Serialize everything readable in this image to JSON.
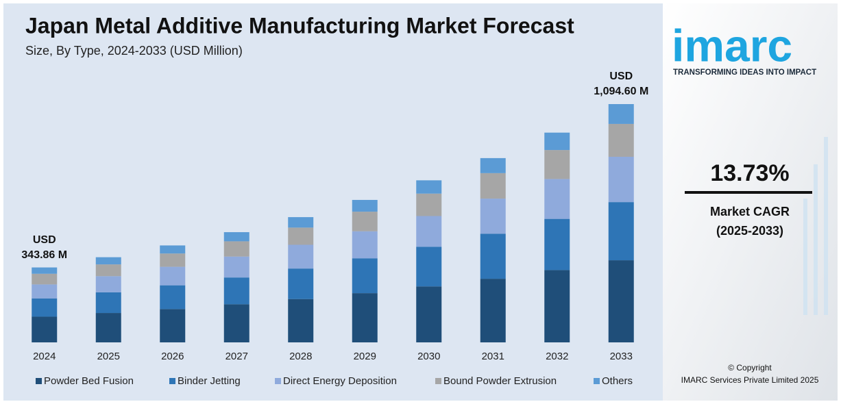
{
  "chart_data": {
    "type": "stacked_bar",
    "title": "Japan Metal Additive Manufacturing Market Forecast",
    "subtitle": "Size, By Type, 2024-2033 (USD Million)",
    "categories": [
      "2024",
      "2025",
      "2026",
      "2027",
      "2028",
      "2029",
      "2030",
      "2031",
      "2032",
      "2033"
    ],
    "series": [
      {
        "name": "Powder Bed Fusion",
        "color": "#1f4e79",
        "values": [
          118,
          135,
          153,
          175,
          199,
          226,
          257,
          292,
          332,
          377
        ]
      },
      {
        "name": "Binder Jetting",
        "color": "#2e75b6",
        "values": [
          84,
          95,
          109,
          123,
          140,
          160,
          182,
          207,
          235,
          267
        ]
      },
      {
        "name": "Direct Energy Deposition",
        "color": "#8faadc",
        "values": [
          64,
          74,
          85,
          96,
          109,
          124,
          141,
          161,
          183,
          208
        ]
      },
      {
        "name": "Bound Powder Extrusion",
        "color": "#a6a6a6",
        "values": [
          49,
          54,
          61,
          70,
          79,
          90,
          103,
          117,
          133,
          151
        ]
      },
      {
        "name": "Others",
        "color": "#5b9bd5",
        "values": [
          29,
          33,
          37,
          42,
          48,
          54,
          61,
          69,
          80,
          91
        ]
      }
    ],
    "annotations": [
      {
        "category": "2024",
        "value": 343.86,
        "label_lines": [
          "USD",
          "343.86 M"
        ]
      },
      {
        "category": "2033",
        "value": 1094.6,
        "label_lines": [
          "USD",
          "1,094.60 M"
        ]
      }
    ],
    "legend": "bottom"
  },
  "sidebar": {
    "logo": "imarc",
    "tagline": "TRANSFORMING IDEAS INTO IMPACT",
    "cagr": "13.73%",
    "cagr_label": "Market CAGR",
    "cagr_period": "(2025-2033)",
    "copyright": "© Copyright",
    "company": "IMARC Services Private Limited 2025"
  }
}
